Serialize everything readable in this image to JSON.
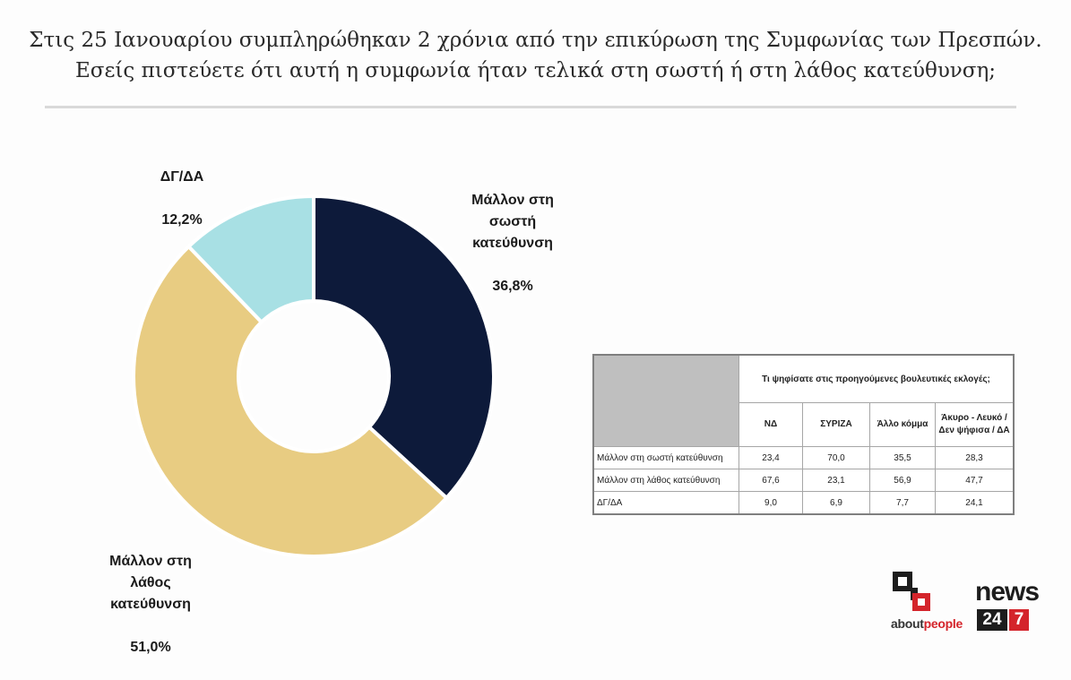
{
  "title": {
    "line1": "Στις 25 Ιανουαρίου συμπληρώθηκαν 2 χρόνια από την επικύρωση της Συμφωνίας των Πρεσπών.",
    "line2": "Εσείς πιστεύετε ότι αυτή η συμφωνία ήταν τελικά στη σωστή ή στη λάθος κατεύθυνση;"
  },
  "chart_data": {
    "type": "pie",
    "variant": "donut",
    "title": "",
    "slices": [
      {
        "label": "Μάλλον στη\nσωστή\nκατεύθυνση",
        "value": 36.8,
        "value_label": "36,8%",
        "color": "#0d1a3a"
      },
      {
        "label": "Μάλλον στη\nλάθος\nκατεύθυνση",
        "value": 51.0,
        "value_label": "51,0%",
        "color": "#e8cc82"
      },
      {
        "label": "ΔΓ/ΔΑ",
        "value": 12.2,
        "value_label": "12,2%",
        "color": "#a8e0e4"
      }
    ]
  },
  "table": {
    "header": "Τι ψηφίσατε στις προηγούμενες βουλευτικές εκλογές;",
    "columns": [
      "ΝΔ",
      "ΣΥΡΙΖΑ",
      "Άλλο κόμμα",
      "Άκυρο - Λευκό / Δεν ψήφισα / ΔΑ"
    ],
    "rows": [
      {
        "label": "Μάλλον στη σωστή κατεύθυνση",
        "values": [
          "23,4",
          "70,0",
          "35,5",
          "28,3"
        ]
      },
      {
        "label": "Μάλλον στη λάθος κατεύθυνση",
        "values": [
          "67,6",
          "23,1",
          "56,9",
          "47,7"
        ]
      },
      {
        "label": "ΔΓ/ΔΑ",
        "values": [
          "9,0",
          "6,9",
          "7,7",
          "24,1"
        ]
      }
    ]
  },
  "logos": {
    "aboutpeople_prefix": "about",
    "aboutpeople_suffix": "people",
    "news": "news",
    "num24": "24",
    "num7": "7"
  },
  "colors": {
    "accent_red": "#d4242b",
    "dark": "#1d1d1d"
  }
}
